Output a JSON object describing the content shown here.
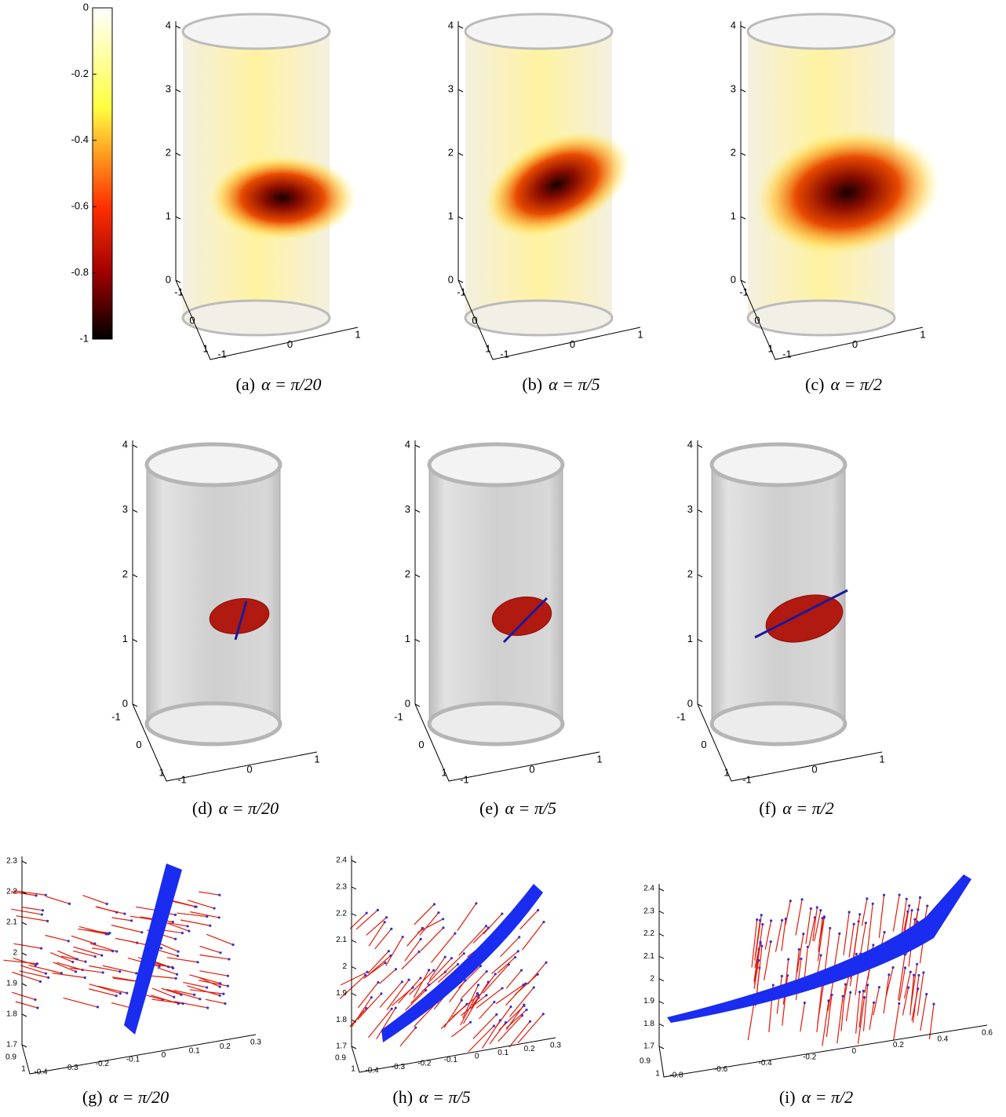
{
  "colorbar": {
    "ticks": [
      0,
      -0.2,
      -0.4,
      -0.6,
      -0.8,
      -1
    ]
  },
  "panels": [
    {
      "label": "(a)",
      "caption": "α = π/20",
      "z_ticks": [
        0,
        1,
        2,
        3,
        4
      ],
      "y_ticks": [
        -1,
        0,
        1
      ],
      "x_ticks": [
        -1,
        0,
        1
      ]
    },
    {
      "label": "(b)",
      "caption": "α = π/5",
      "z_ticks": [
        0,
        1,
        2,
        3,
        4
      ],
      "y_ticks": [
        -1,
        0,
        1
      ],
      "x_ticks": [
        -1,
        0,
        1
      ]
    },
    {
      "label": "(c)",
      "caption": "α = π/2",
      "z_ticks": [
        0,
        1,
        2,
        3,
        4
      ],
      "y_ticks": [
        -1,
        0,
        1
      ],
      "x_ticks": [
        -1,
        0,
        1
      ]
    },
    {
      "label": "(d)",
      "caption": "α = π/20",
      "z_ticks": [
        0,
        1,
        2,
        3,
        4
      ],
      "y_ticks": [
        -1,
        0,
        1
      ],
      "x_ticks": [
        -1,
        0,
        1
      ]
    },
    {
      "label": "(e)",
      "caption": "α = π/5",
      "z_ticks": [
        0,
        1,
        2,
        3,
        4
      ],
      "y_ticks": [
        -1,
        0,
        1
      ],
      "x_ticks": [
        -1,
        0,
        1
      ]
    },
    {
      "label": "(f)",
      "caption": "α = π/2",
      "z_ticks": [
        0,
        1,
        2,
        3,
        4
      ],
      "y_ticks": [
        -1,
        0,
        1
      ],
      "x_ticks": [
        -1,
        0,
        1
      ]
    },
    {
      "label": "(g)",
      "caption": "α = π/20",
      "z_ticks": [
        1.7,
        1.8,
        1.9,
        2,
        2.1,
        2.2,
        2.3
      ],
      "y_ticks": [
        0.9,
        1
      ],
      "x_ticks": [
        -0.4,
        -0.3,
        -0.2,
        -0.1,
        0,
        0.1,
        0.2,
        0.3
      ]
    },
    {
      "label": "(h)",
      "caption": "α = π/5",
      "z_ticks": [
        1.7,
        1.8,
        1.9,
        2,
        2.1,
        2.2,
        2.3,
        2.4
      ],
      "y_ticks": [
        0.9,
        1
      ],
      "x_ticks": [
        -0.4,
        -0.3,
        -0.2,
        -0.1,
        0,
        0.1,
        0.2,
        0.3
      ]
    },
    {
      "label": "(i)",
      "caption": "α = π/2",
      "z_ticks": [
        1.7,
        1.8,
        1.9,
        2,
        2.1,
        2.2,
        2.3,
        2.4
      ],
      "y_ticks": [
        0.9,
        1
      ],
      "x_ticks": [
        -0.8,
        -0.6,
        -0.4,
        -0.2,
        0,
        0.2,
        0.4,
        0.6
      ]
    }
  ]
}
